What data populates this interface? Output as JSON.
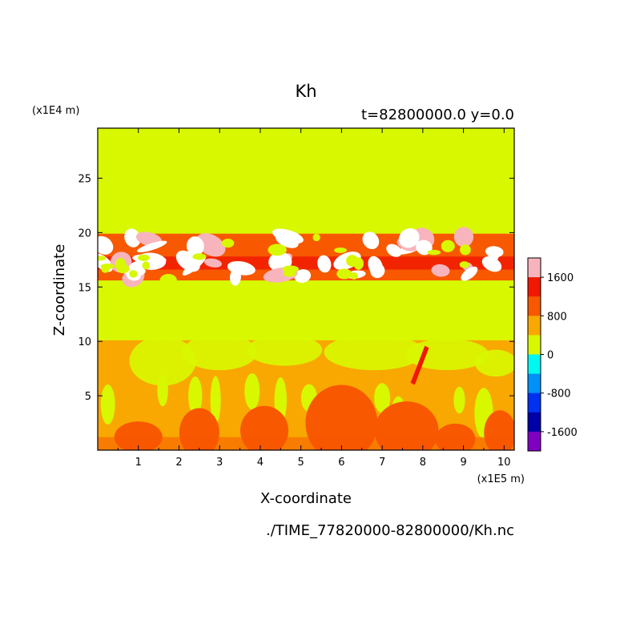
{
  "chart_data": {
    "type": "heatmap",
    "title": "Kh",
    "subtitle": "t=82800000.0 y=0.0",
    "xlabel": "X-coordinate",
    "ylabel": "Z-coordinate",
    "x_unit": "(x1E5 m)",
    "y_unit": "(x1E4 m)",
    "xlim": [
      0,
      10.25
    ],
    "ylim": [
      0,
      29.6
    ],
    "x_ticks": [
      "1",
      "2",
      "3",
      "4",
      "5",
      "6",
      "7",
      "8",
      "9",
      "10"
    ],
    "y_ticks": [
      "5",
      "10",
      "15",
      "20",
      "25"
    ],
    "colorbar_labels": [
      "1600",
      "800",
      "0",
      "-800",
      "-1600"
    ],
    "colorbar_colors": [
      "#f8b4bc",
      "#f01800",
      "#f85800",
      "#f8a800",
      "#d8f800",
      "#00f8f0",
      "#0090f8",
      "#0030f0",
      "#0000a8",
      "#8000c0"
    ],
    "colorbar_range": [
      -2000,
      2000
    ],
    "file_caption": "./TIME_77820000-82800000/Kh.nc",
    "field_colors": {
      "background": "#d8f800",
      "white": "#ffffff",
      "pink": "#f8b4bc",
      "red": "#f01800",
      "orange_red": "#f85800",
      "orange": "#f8a800"
    }
  }
}
